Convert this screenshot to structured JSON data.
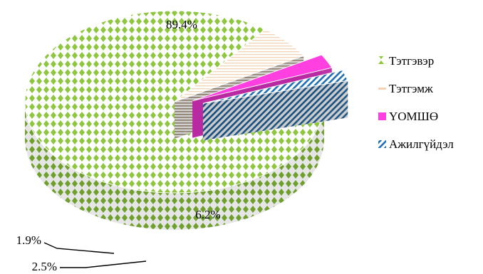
{
  "chart_data": {
    "type": "pie",
    "style": "3d-exploded",
    "categories": [
      "Тэтгэвэр",
      "Тэтгэмж",
      "ҮОМШӨ",
      "Ажилгүйдэл"
    ],
    "values": [
      89.4,
      6.2,
      2.5,
      1.9
    ],
    "value_labels": [
      "89.4%",
      "6.2%",
      "2.5%",
      "1.9%"
    ],
    "colors": [
      "#8dc63f",
      "#f2d3b6",
      "#ff3fdf",
      "#1f6fb2"
    ],
    "legend_position": "right"
  }
}
